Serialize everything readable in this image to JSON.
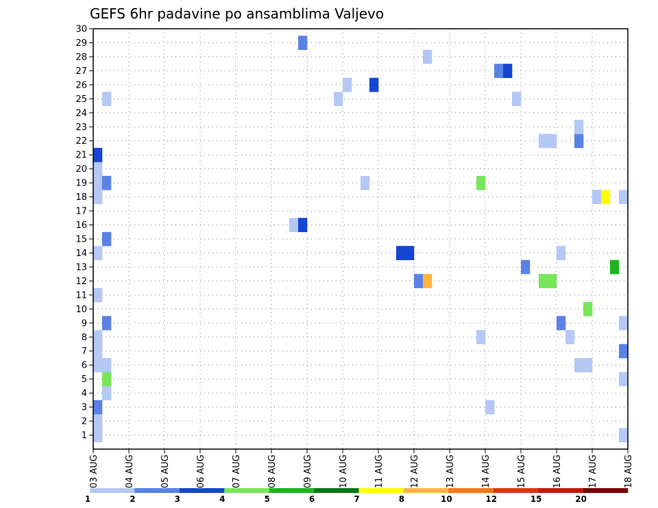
{
  "chart_data": {
    "type": "heatmap",
    "title": "GEFS 6hr padavine po ansamblima Valjevo",
    "xlabel": "",
    "ylabel": "",
    "x_tick_labels": [
      "03 AUG",
      "04 AUG",
      "05 AUG",
      "06 AUG",
      "07 AUG",
      "08 AUG",
      "09 AUG",
      "10 AUG",
      "11 AUG",
      "12 AUG",
      "13 AUG",
      "14 AUG",
      "15 AUG",
      "16 AUG",
      "17 AUG",
      "18 AUG"
    ],
    "x_range_days": [
      0,
      15
    ],
    "time_step_hours": 6,
    "y_tick_labels": [
      "1",
      "2",
      "3",
      "4",
      "5",
      "6",
      "7",
      "8",
      "9",
      "10",
      "11",
      "12",
      "13",
      "14",
      "15",
      "16",
      "17",
      "18",
      "19",
      "20",
      "21",
      "22",
      "23",
      "24",
      "25",
      "26",
      "27",
      "28",
      "29",
      "30"
    ],
    "y_range": [
      0,
      30
    ],
    "grid": true,
    "legend": "bottom",
    "color_levels": [
      {
        "label": "1",
        "color": "#b4c8f5"
      },
      {
        "label": "2",
        "color": "#5a82e6"
      },
      {
        "label": "3",
        "color": "#1446d2"
      },
      {
        "label": "4",
        "color": "#78e65a"
      },
      {
        "label": "5",
        "color": "#1eb41e"
      },
      {
        "label": "6",
        "color": "#0a7814"
      },
      {
        "label": "7",
        "color": "#ffff00"
      },
      {
        "label": "8",
        "color": "#ffb43c"
      },
      {
        "label": "10",
        "color": "#ff7814"
      },
      {
        "label": "12",
        "color": "#e6320a"
      },
      {
        "label": "15",
        "color": "#c8140a"
      },
      {
        "label": "20",
        "color": "#780000"
      }
    ],
    "cbar_labels": [
      "1",
      "2",
      "3",
      "4",
      "5",
      "6",
      "7",
      "8",
      "10",
      "12",
      "15",
      "20"
    ],
    "cells": [
      {
        "step": 1,
        "member": 1,
        "level": 1
      },
      {
        "step": 1,
        "member": 2,
        "level": 1
      },
      {
        "step": 1,
        "member": 3,
        "level": 2
      },
      {
        "step": 1,
        "member": 6,
        "level": 1
      },
      {
        "step": 1,
        "member": 7,
        "level": 1
      },
      {
        "step": 1,
        "member": 8,
        "level": 1
      },
      {
        "step": 1,
        "member": 11,
        "level": 1
      },
      {
        "step": 1,
        "member": 14,
        "level": 1
      },
      {
        "step": 1,
        "member": 18,
        "level": 1
      },
      {
        "step": 1,
        "member": 19,
        "level": 1
      },
      {
        "step": 1,
        "member": 20,
        "level": 1
      },
      {
        "step": 1,
        "member": 21,
        "level": 3
      },
      {
        "step": 2,
        "member": 4,
        "level": 1
      },
      {
        "step": 2,
        "member": 5,
        "level": 4
      },
      {
        "step": 2,
        "member": 6,
        "level": 1
      },
      {
        "step": 2,
        "member": 9,
        "level": 2
      },
      {
        "step": 2,
        "member": 15,
        "level": 2
      },
      {
        "step": 2,
        "member": 19,
        "level": 2
      },
      {
        "step": 2,
        "member": 25,
        "level": 1
      },
      {
        "step": 23,
        "member": 16,
        "level": 1
      },
      {
        "step": 24,
        "member": 16,
        "level": 3
      },
      {
        "step": 24,
        "member": 29,
        "level": 2
      },
      {
        "step": 28,
        "member": 25,
        "level": 1
      },
      {
        "step": 29,
        "member": 26,
        "level": 1
      },
      {
        "step": 31,
        "member": 19,
        "level": 1
      },
      {
        "step": 32,
        "member": 26,
        "level": 3
      },
      {
        "step": 35,
        "member": 14,
        "level": 3
      },
      {
        "step": 36,
        "member": 14,
        "level": 3
      },
      {
        "step": 37,
        "member": 12,
        "level": 2
      },
      {
        "step": 38,
        "member": 12,
        "level": 8
      },
      {
        "step": 38,
        "member": 28,
        "level": 1
      },
      {
        "step": 44,
        "member": 8,
        "level": 1
      },
      {
        "step": 44,
        "member": 19,
        "level": 4
      },
      {
        "step": 45,
        "member": 3,
        "level": 1
      },
      {
        "step": 46,
        "member": 27,
        "level": 2
      },
      {
        "step": 47,
        "member": 27,
        "level": 3
      },
      {
        "step": 48,
        "member": 25,
        "level": 1
      },
      {
        "step": 49,
        "member": 13,
        "level": 2
      },
      {
        "step": 51,
        "member": 12,
        "level": 4
      },
      {
        "step": 51,
        "member": 22,
        "level": 1
      },
      {
        "step": 52,
        "member": 12,
        "level": 4
      },
      {
        "step": 52,
        "member": 22,
        "level": 1
      },
      {
        "step": 53,
        "member": 9,
        "level": 2
      },
      {
        "step": 53,
        "member": 14,
        "level": 1
      },
      {
        "step": 54,
        "member": 8,
        "level": 1
      },
      {
        "step": 55,
        "member": 6,
        "level": 1
      },
      {
        "step": 55,
        "member": 22,
        "level": 2
      },
      {
        "step": 55,
        "member": 23,
        "level": 1
      },
      {
        "step": 56,
        "member": 6,
        "level": 1
      },
      {
        "step": 56,
        "member": 10,
        "level": 4
      },
      {
        "step": 57,
        "member": 18,
        "level": 1
      },
      {
        "step": 58,
        "member": 18,
        "level": 7
      },
      {
        "step": 59,
        "member": 13,
        "level": 5
      },
      {
        "step": 60,
        "member": 1,
        "level": 1
      },
      {
        "step": 60,
        "member": 5,
        "level": 1
      },
      {
        "step": 60,
        "member": 7,
        "level": 2
      },
      {
        "step": 60,
        "member": 9,
        "level": 1
      },
      {
        "step": 60,
        "member": 18,
        "level": 1
      }
    ]
  }
}
